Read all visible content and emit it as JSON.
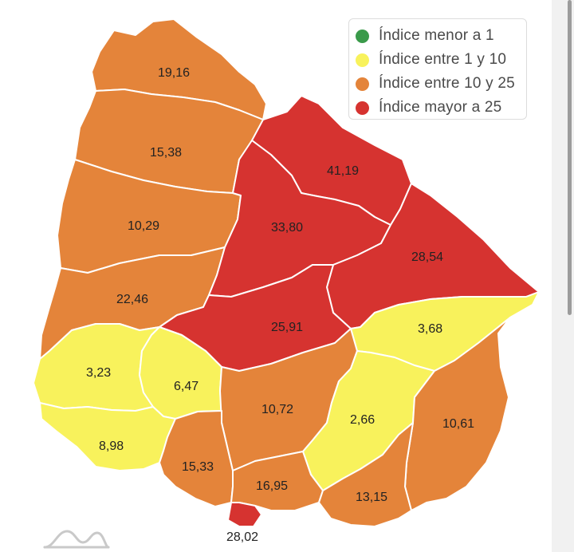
{
  "legend": {
    "items": [
      {
        "label": "Índice menor a 1",
        "color": "#3a9a4a"
      },
      {
        "label": "Índice entre 1 y 10",
        "color": "#f8f25c"
      },
      {
        "label": "Índice entre 10 y 25",
        "color": "#e4843a"
      },
      {
        "label": "Índice mayor a 25",
        "color": "#d63330"
      }
    ]
  },
  "regions": [
    {
      "id": "artigas",
      "value": "19,16",
      "category": "orange"
    },
    {
      "id": "salto",
      "value": "15,38",
      "category": "orange"
    },
    {
      "id": "paysandu",
      "value": "10,29",
      "category": "orange"
    },
    {
      "id": "rio-negro",
      "value": "22,46",
      "category": "orange"
    },
    {
      "id": "rivera",
      "value": "41,19",
      "category": "red"
    },
    {
      "id": "tacuarembo",
      "value": "33,80",
      "category": "red"
    },
    {
      "id": "cerro-largo",
      "value": "28,54",
      "category": "red"
    },
    {
      "id": "durazno",
      "value": "25,91",
      "category": "red"
    },
    {
      "id": "treinta-y-tres",
      "value": "3,68",
      "category": "yellow"
    },
    {
      "id": "soriano",
      "value": "3,23",
      "category": "yellow"
    },
    {
      "id": "flores",
      "value": "6,47",
      "category": "yellow"
    },
    {
      "id": "colonia",
      "value": "8,98",
      "category": "yellow"
    },
    {
      "id": "lavalleja",
      "value": "2,66",
      "category": "yellow"
    },
    {
      "id": "florida",
      "value": "10,72",
      "category": "orange"
    },
    {
      "id": "rocha",
      "value": "10,61",
      "category": "orange"
    },
    {
      "id": "san-jose",
      "value": "15,33",
      "category": "orange"
    },
    {
      "id": "canelones",
      "value": "16,95",
      "category": "orange"
    },
    {
      "id": "maldonado",
      "value": "13,15",
      "category": "orange"
    },
    {
      "id": "montevideo",
      "value": "28,02",
      "category": "red"
    }
  ],
  "colors": {
    "orange": "#e4843a",
    "red": "#d63330",
    "yellow": "#f8f25c",
    "green": "#3a9a4a"
  },
  "icons": {
    "watermark": "wave-logo-icon"
  }
}
